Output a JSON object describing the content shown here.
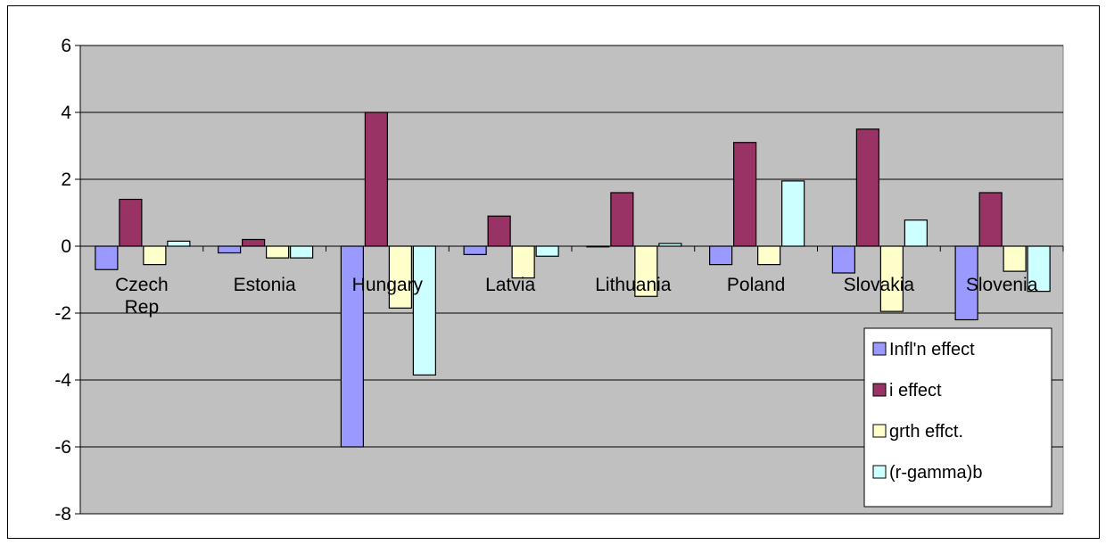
{
  "chart_data": {
    "type": "bar",
    "title": "",
    "xlabel": "",
    "ylabel": "",
    "ylim": [
      -8,
      6
    ],
    "yticks": [
      6,
      4,
      2,
      0,
      -2,
      -4,
      -6,
      -8
    ],
    "grid": true,
    "legend_position": "right",
    "plot_background": "#c0c0c0",
    "categories": [
      "Czech Rep",
      "Estonia",
      "Hungary",
      "Latvia",
      "Lithuania",
      "Poland",
      "Slovakia",
      "Slovenia"
    ],
    "series": [
      {
        "name": "Infl'n effect",
        "color": "#9999ff",
        "values": [
          -0.7,
          -0.2,
          -6.0,
          -0.25,
          0.0,
          -0.55,
          -0.8,
          -2.2
        ]
      },
      {
        "name": "i effect",
        "color": "#993366",
        "values": [
          1.4,
          0.2,
          4.0,
          0.9,
          1.6,
          3.1,
          3.5,
          1.6
        ]
      },
      {
        "name": "grth effct.",
        "color": "#ffffcc",
        "values": [
          -0.55,
          -0.35,
          -1.85,
          -0.95,
          -1.5,
          -0.55,
          -1.95,
          -0.75
        ]
      },
      {
        "name": "(r-gamma)b",
        "color": "#ccffff",
        "values": [
          0.15,
          -0.35,
          -3.85,
          -0.3,
          0.08,
          1.95,
          0.78,
          -1.35
        ]
      }
    ]
  }
}
